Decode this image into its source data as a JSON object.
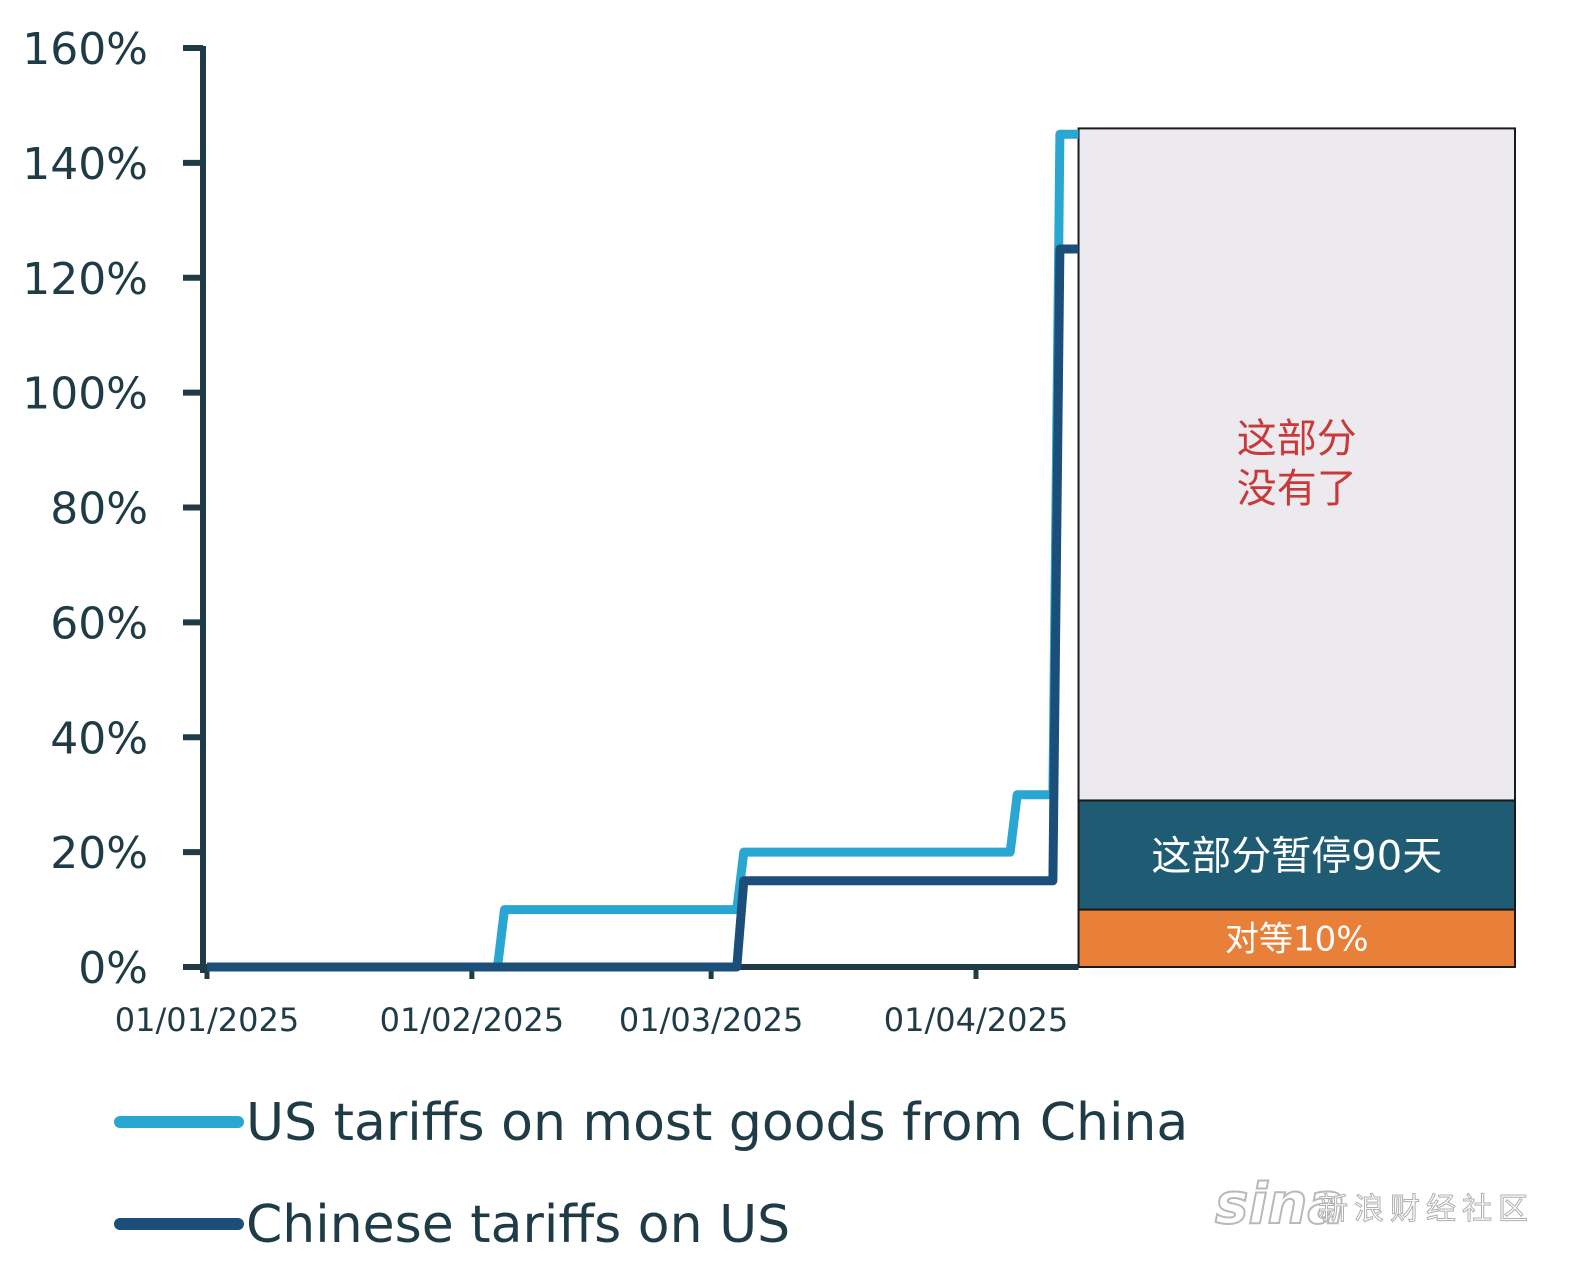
{
  "chart_data": {
    "type": "line",
    "title": "",
    "xlabel": "",
    "ylabel": "",
    "ylim": [
      0,
      160
    ],
    "y_ticks": [
      "160%",
      "140%",
      "120%",
      "100%",
      "80%",
      "60%",
      "40%",
      "20%",
      "0%"
    ],
    "y_tick_values": [
      160,
      140,
      120,
      100,
      80,
      60,
      40,
      20,
      0
    ],
    "x_ticks": [
      "01/01/2025",
      "01/02/2025",
      "01/03/2025",
      "01/04/2025"
    ],
    "x_tick_dates": [
      "2025-01-01",
      "2025-02-01",
      "2025-03-01",
      "2025-04-01"
    ],
    "xlim": [
      "2025-01-01",
      "2025-04-13"
    ],
    "grid": false,
    "legend_position": "bottom",
    "series": [
      {
        "name": "US tariffs on most goods from China",
        "color": "#2aa6d2",
        "step_points": [
          {
            "date": "2025-01-01",
            "value": 0
          },
          {
            "date": "2025-02-04",
            "value": 10
          },
          {
            "date": "2025-03-04",
            "value": 20
          },
          {
            "date": "2025-04-05",
            "value": 30
          },
          {
            "date": "2025-04-10",
            "value": 145
          },
          {
            "date": "2025-04-13",
            "value": 145
          }
        ]
      },
      {
        "name": "Chinese tariffs on US",
        "color": "#1b4f7a",
        "step_points": [
          {
            "date": "2025-01-01",
            "value": 0
          },
          {
            "date": "2025-03-04",
            "value": 15
          },
          {
            "date": "2025-04-10",
            "value": 125
          },
          {
            "date": "2025-04-13",
            "value": 125
          }
        ]
      }
    ],
    "annotation_stack": [
      {
        "label": "对等10%",
        "bottom": 0,
        "top": 10,
        "fill": "#e8803a",
        "text_color": "#ffffff"
      },
      {
        "label": "这部分暂停90天",
        "bottom": 10,
        "top": 29,
        "fill": "#1f5b73",
        "text_color": "#ffffff"
      },
      {
        "label": "这部分\n没有了",
        "bottom": 29,
        "top": 146,
        "fill": "#eceaee",
        "text_color": "#c83a3a"
      }
    ]
  },
  "watermark": {
    "brand": "sina",
    "text": "新浪财经社区"
  }
}
